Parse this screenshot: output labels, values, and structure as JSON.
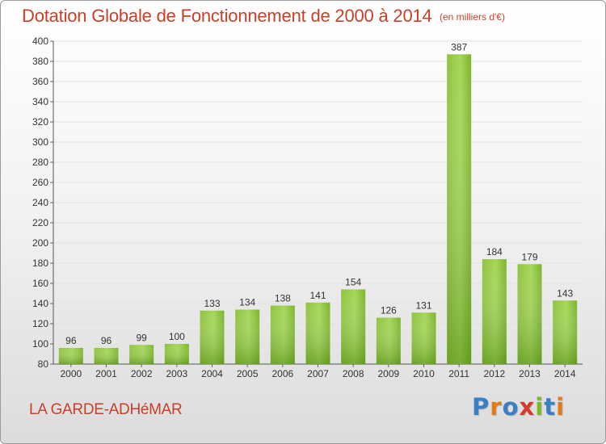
{
  "header": {
    "title": "Dotation Globale de Fonctionnement de 2000 à 2014",
    "unit": "(en milliers d'€)"
  },
  "footer": {
    "commune": "LA GARDE-ADHéMAR",
    "logo": "Proxiti"
  },
  "colors": {
    "title": "#c9402a",
    "bar_light": "#a6d65a",
    "bar_dark": "#5e9a17",
    "grid": "#e0e0e0",
    "logo_letters": [
      "#3a7fc4",
      "#e07b1c",
      "#3a7fc4",
      "#d63a2a",
      "#7ab828",
      "#3a7fc4",
      "#e07b1c"
    ]
  },
  "chart_data": {
    "type": "bar",
    "title": "Dotation Globale de Fonctionnement de 2000 à 2014",
    "subtitle": "(en milliers d'€)",
    "xlabel": "",
    "ylabel": "",
    "categories": [
      "2000",
      "2001",
      "2002",
      "2003",
      "2004",
      "2005",
      "2006",
      "2007",
      "2008",
      "2009",
      "2010",
      "2011",
      "2012",
      "2013",
      "2014"
    ],
    "values": [
      96,
      96,
      99,
      100,
      133,
      134,
      138,
      141,
      154,
      126,
      131,
      387,
      184,
      179,
      143
    ],
    "ylim": [
      80,
      400
    ],
    "yticks": [
      80,
      100,
      120,
      140,
      160,
      180,
      200,
      220,
      240,
      260,
      280,
      300,
      320,
      340,
      360,
      380,
      400
    ],
    "grid": true,
    "legend": "none"
  }
}
